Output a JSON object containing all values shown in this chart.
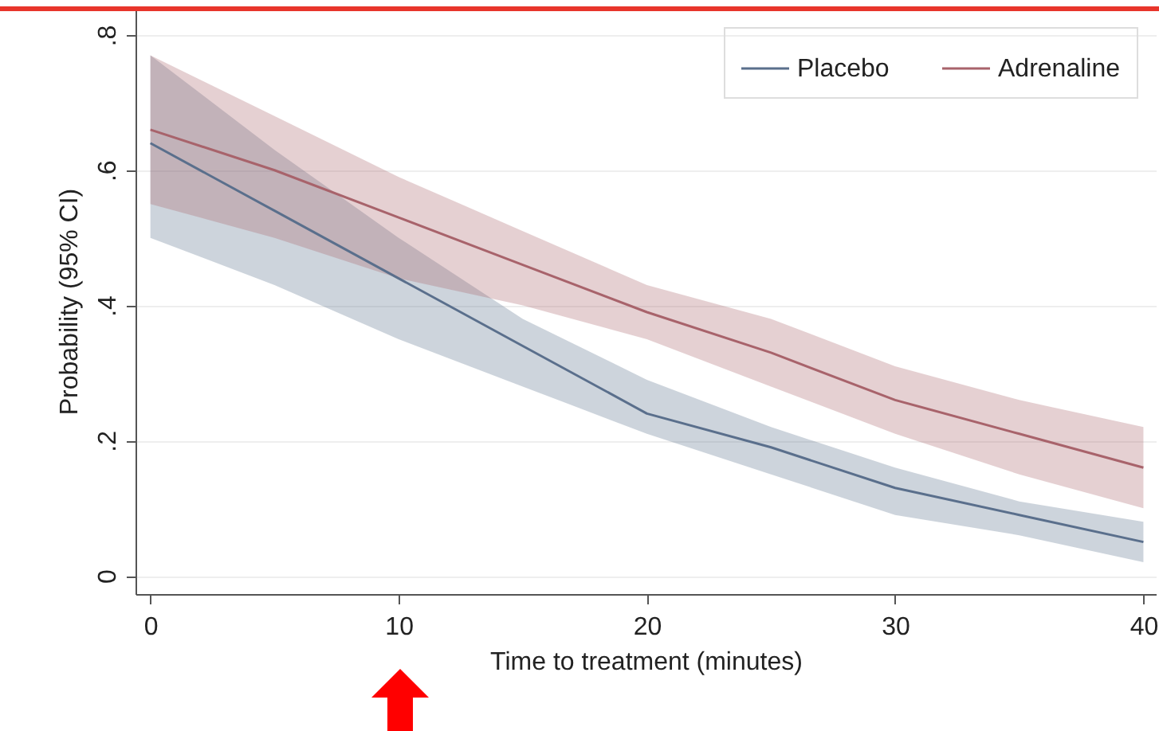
{
  "chart_data": {
    "type": "line",
    "xlabel": "Time to treatment (minutes)",
    "ylabel": "Probability (95% CI)",
    "x": [
      0,
      5,
      10,
      15,
      20,
      25,
      30,
      35,
      40
    ],
    "series": [
      {
        "name": "Placebo",
        "color": "#5a6f8c",
        "values": [
          0.64,
          0.54,
          0.44,
          0.34,
          0.24,
          0.19,
          0.13,
          0.09,
          0.05
        ],
        "lower": [
          0.5,
          0.43,
          0.35,
          0.28,
          0.21,
          0.15,
          0.09,
          0.06,
          0.02
        ],
        "upper": [
          0.77,
          0.63,
          0.5,
          0.38,
          0.29,
          0.22,
          0.16,
          0.11,
          0.08
        ]
      },
      {
        "name": "Adrenaline",
        "color": "#a8636b",
        "values": [
          0.66,
          0.6,
          0.53,
          0.46,
          0.39,
          0.33,
          0.26,
          0.21,
          0.16
        ],
        "lower": [
          0.55,
          0.5,
          0.44,
          0.4,
          0.35,
          0.28,
          0.21,
          0.15,
          0.1
        ],
        "upper": [
          0.77,
          0.68,
          0.59,
          0.51,
          0.43,
          0.38,
          0.31,
          0.26,
          0.22
        ]
      }
    ],
    "xlim": [
      -0.6,
      40.5
    ],
    "xticks": [
      0,
      10,
      20,
      30,
      40
    ],
    "ylim": [
      -0.027,
      0.84
    ],
    "yticks": [
      0,
      {
        "value": 0.2,
        "label": ".2"
      },
      {
        "value": 0.4,
        "label": ".4"
      },
      {
        "value": 0.6,
        "label": ".6"
      },
      {
        "value": 0.8,
        "label": ".8"
      }
    ],
    "grid": "y",
    "legend": "top right",
    "marker": "none",
    "line_style": "solid"
  }
}
